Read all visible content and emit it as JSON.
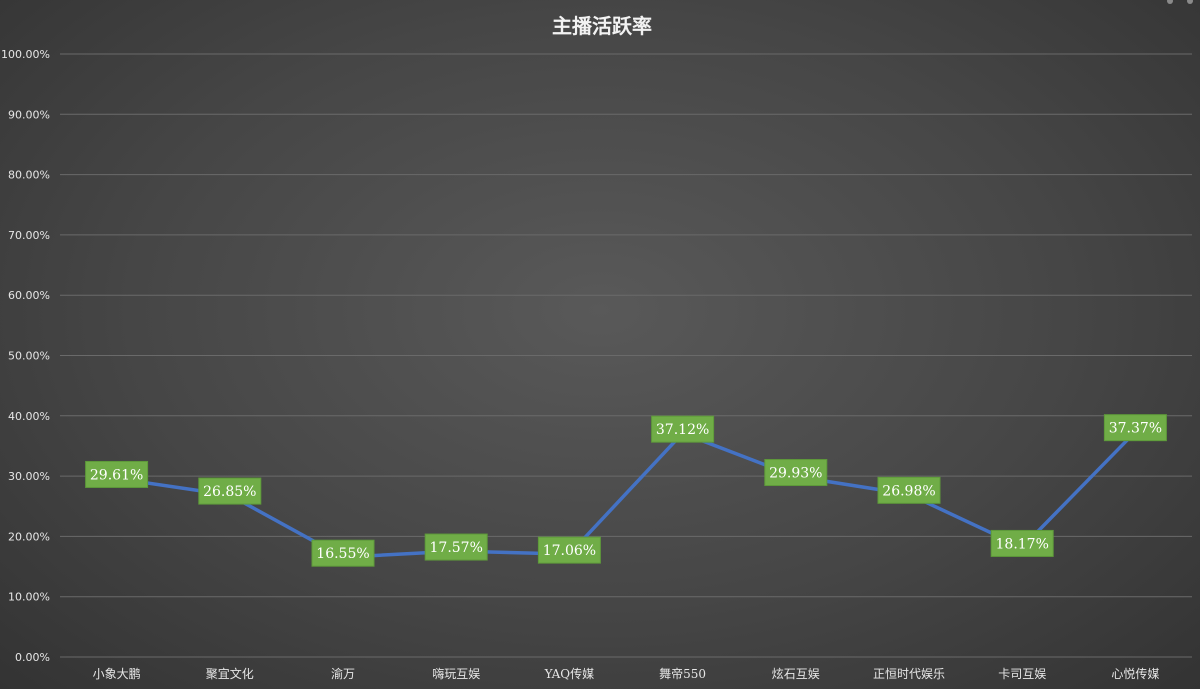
{
  "chart_data": {
    "type": "line",
    "title": "主播活跃率",
    "categories": [
      "小象大鹏",
      "聚宜文化",
      "渝万",
      "嗨玩互娱",
      "YAQ传媒",
      "舞帝550",
      "炫石互娱",
      "正恒时代娱乐",
      "卡司互娱",
      "心悦传媒"
    ],
    "values": [
      29.61,
      26.85,
      16.55,
      17.57,
      17.06,
      37.12,
      29.93,
      26.98,
      18.17,
      37.37
    ],
    "data_labels": [
      "29.61%",
      "26.85%",
      "16.55%",
      "17.57%",
      "17.06%",
      "37.12%",
      "29.93%",
      "26.98%",
      "18.17%",
      "37.37%"
    ],
    "y_ticks": [
      0,
      10,
      20,
      30,
      40,
      50,
      60,
      70,
      80,
      90,
      100
    ],
    "y_tick_labels": [
      "0.00%",
      "10.00%",
      "20.00%",
      "30.00%",
      "40.00%",
      "50.00%",
      "60.00%",
      "70.00%",
      "80.00%",
      "90.00%",
      "100.00%"
    ],
    "ylim": [
      0,
      100
    ],
    "xlabel": "",
    "ylabel": "",
    "grid": true,
    "legend": "none",
    "colors": {
      "line": "#4472c4",
      "label_fill": "#70ad47",
      "gridline": "#6a6a6a",
      "text": "#e6e6e6"
    }
  }
}
